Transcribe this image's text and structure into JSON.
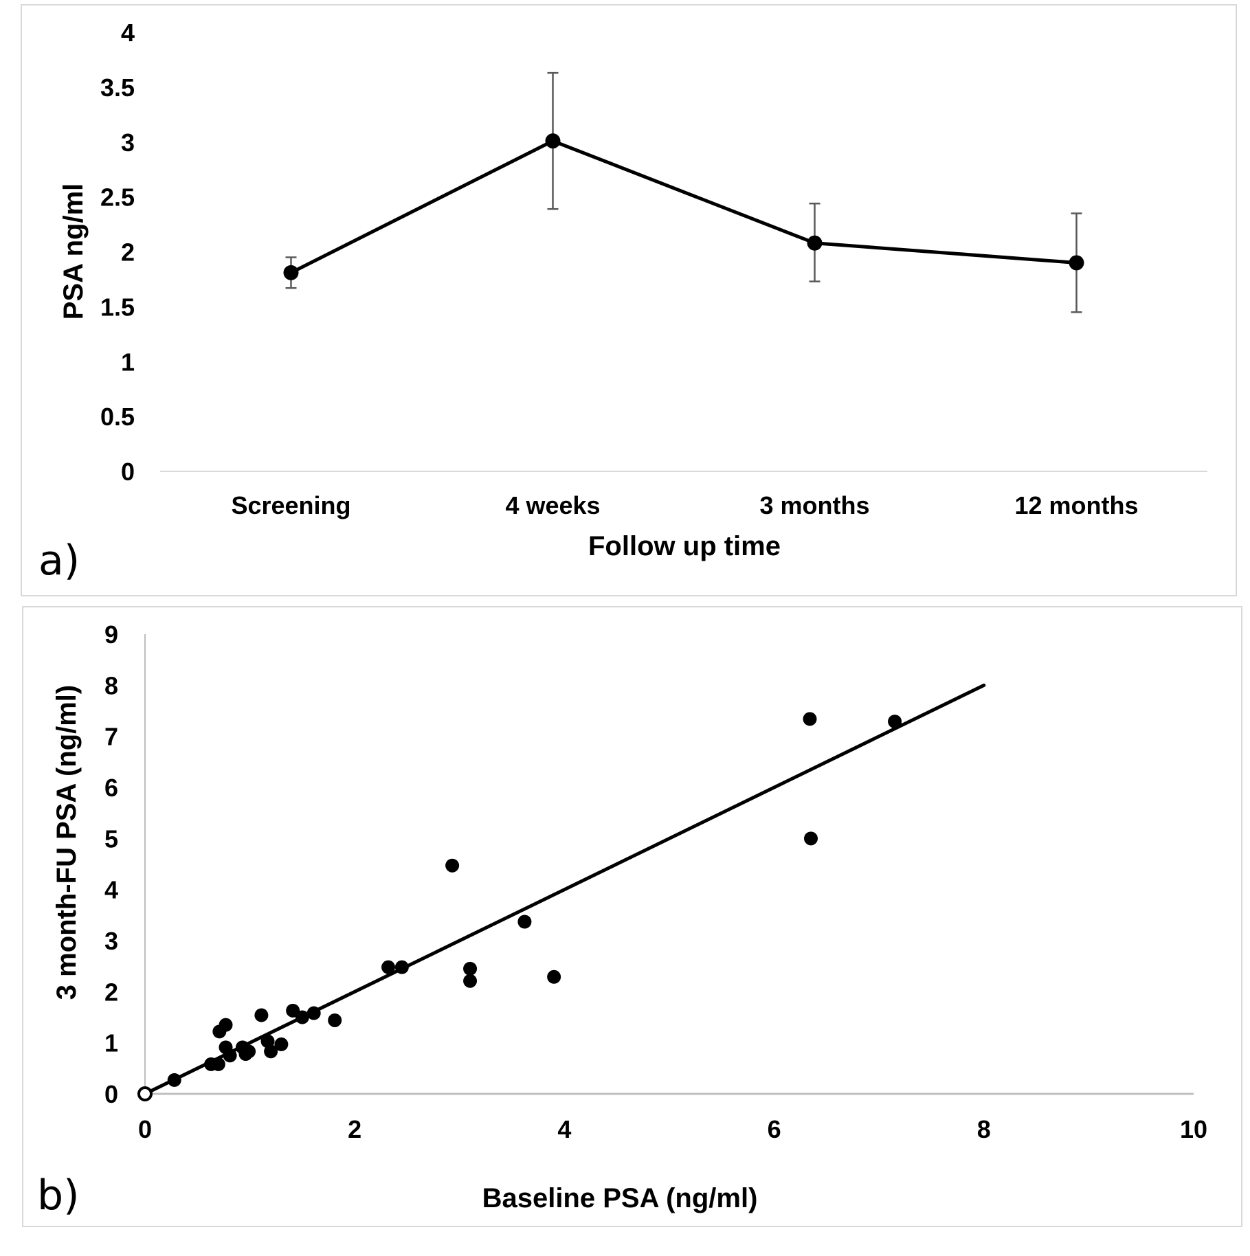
{
  "figure": {
    "panels": [
      "a)",
      "b)"
    ]
  },
  "chart_data": [
    {
      "type": "line",
      "panel_label": "a)",
      "title": "",
      "xlabel": "Follow up time",
      "ylabel": "PSA ng/ml",
      "categories": [
        "Screening",
        "4 weeks",
        "3 months",
        "12 months"
      ],
      "series": [
        {
          "name": "PSA",
          "values": [
            1.81,
            3.01,
            2.08,
            1.9
          ],
          "error_low": [
            1.67,
            2.39,
            1.73,
            1.45
          ],
          "error_high": [
            1.95,
            3.63,
            2.44,
            2.35
          ]
        }
      ],
      "ylim": [
        0,
        4
      ],
      "yticks": [
        "0",
        "0.5",
        "1",
        "1.5",
        "2",
        "2.5",
        "3",
        "3.5",
        "4"
      ],
      "ytick_values": [
        0,
        0.5,
        1,
        1.5,
        2,
        2.5,
        3,
        3.5,
        4
      ],
      "grid": false,
      "colors": {
        "line": "#000000",
        "marker": "#000000",
        "errorbar": "#595959",
        "axis": "#d9d9d9"
      }
    },
    {
      "type": "scatter",
      "panel_label": "b)",
      "title": "",
      "xlabel": "Baseline PSA (ng/ml)",
      "ylabel": "3 month-FU PSA (ng/ml)",
      "xlim": [
        0,
        10
      ],
      "ylim": [
        0,
        9
      ],
      "xticks": [
        "0",
        "2",
        "4",
        "6",
        "8",
        "10"
      ],
      "xtick_values": [
        0,
        2,
        4,
        6,
        8,
        10
      ],
      "yticks": [
        "0",
        "1",
        "2",
        "3",
        "4",
        "5",
        "6",
        "7",
        "8",
        "9"
      ],
      "ytick_values": [
        0,
        1,
        2,
        3,
        4,
        5,
        6,
        7,
        8,
        9
      ],
      "grid": false,
      "points": [
        [
          0.28,
          0.27
        ],
        [
          0.63,
          0.58
        ],
        [
          0.7,
          0.58
        ],
        [
          0.71,
          1.22
        ],
        [
          0.77,
          1.35
        ],
        [
          0.77,
          0.91
        ],
        [
          0.81,
          0.75
        ],
        [
          0.93,
          0.91
        ],
        [
          0.96,
          0.78
        ],
        [
          0.99,
          0.83
        ],
        [
          1.11,
          1.54
        ],
        [
          1.17,
          1.03
        ],
        [
          1.2,
          0.83
        ],
        [
          1.3,
          0.97
        ],
        [
          1.41,
          1.63
        ],
        [
          1.5,
          1.5
        ],
        [
          1.61,
          1.58
        ],
        [
          1.81,
          1.44
        ],
        [
          2.32,
          2.48
        ],
        [
          2.45,
          2.48
        ],
        [
          2.93,
          4.47
        ],
        [
          3.1,
          2.45
        ],
        [
          3.1,
          2.21
        ],
        [
          3.62,
          3.37
        ],
        [
          3.9,
          2.29
        ],
        [
          6.34,
          7.34
        ],
        [
          6.35,
          5.0
        ],
        [
          7.15,
          7.29
        ]
      ],
      "origin_point": [
        0,
        0
      ],
      "trendline": {
        "x": [
          0,
          8
        ],
        "y": [
          0,
          8
        ]
      },
      "colors": {
        "points": "#000000",
        "trendline": "#000000",
        "axis": "#bfbfbf"
      }
    }
  ]
}
